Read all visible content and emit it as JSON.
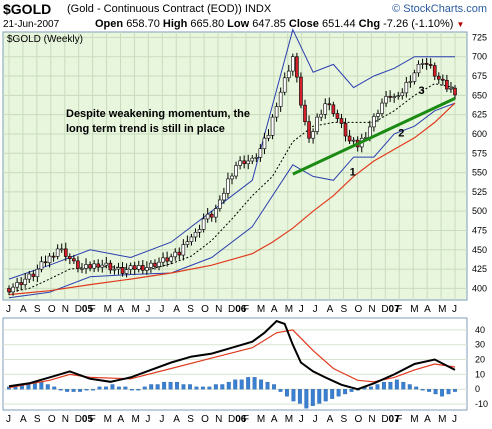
{
  "header": {
    "symbol": "$GOLD",
    "description": "(Gold - Continuous Contract (EOD))",
    "exchange": "INDX",
    "date": "21-Jun-2007",
    "open_label": "Open",
    "open_value": "658.70",
    "high_label": "High",
    "high_value": "665.80",
    "low_label": "Low",
    "low_value": "647.85",
    "close_label": "Close",
    "close_value": "651.44",
    "chg_label": "Chg",
    "chg_value": "-7.26 (-1.10%)",
    "chg_icon": "down-triangle-icon",
    "brand": "© StockCharts.com"
  },
  "chart_data": [
    {
      "type": "candlestick",
      "legend_label": "$GOLD (Weekly)",
      "annotation": "Despite weakening momentum, the long term trend is still in place",
      "point_labels": [
        "1",
        "2",
        "3"
      ],
      "y_ticks": [
        400,
        425,
        450,
        475,
        500,
        525,
        550,
        575,
        600,
        625,
        650,
        675,
        700,
        725
      ],
      "ylim": [
        385,
        732
      ],
      "x_labels": [
        "J",
        "A",
        "S",
        "O",
        "N",
        "D05",
        "F",
        "M",
        "A",
        "M",
        "J",
        "J",
        "A",
        "S",
        "O",
        "N",
        "D06",
        "F",
        "M",
        "A",
        "M",
        "J",
        "J",
        "A",
        "S",
        "O",
        "N",
        "D07",
        "F",
        "M",
        "A",
        "M",
        "J"
      ],
      "x_bold_labels": [
        "05",
        "06",
        "07"
      ],
      "close_series": [
        [
          0,
          400
        ],
        [
          2,
          405
        ],
        [
          4,
          412
        ],
        [
          6,
          418
        ],
        [
          8,
          430
        ],
        [
          10,
          440
        ],
        [
          12,
          452
        ],
        [
          14,
          445
        ],
        [
          16,
          432
        ],
        [
          18,
          425
        ],
        [
          20,
          428
        ],
        [
          22,
          432
        ],
        [
          24,
          430
        ],
        [
          26,
          425
        ],
        [
          28,
          422
        ],
        [
          30,
          425
        ],
        [
          32,
          428
        ],
        [
          34,
          428
        ],
        [
          36,
          432
        ],
        [
          38,
          436
        ],
        [
          40,
          440
        ],
        [
          42,
          445
        ],
        [
          44,
          465
        ],
        [
          46,
          470
        ],
        [
          48,
          490
        ],
        [
          50,
          495
        ],
        [
          52,
          510
        ],
        [
          54,
          540
        ],
        [
          56,
          560
        ],
        [
          58,
          565
        ],
        [
          60,
          565
        ],
        [
          62,
          580
        ],
        [
          64,
          600
        ],
        [
          66,
          640
        ],
        [
          68,
          670
        ],
        [
          70,
          700
        ],
        [
          72,
          640
        ],
        [
          74,
          590
        ],
        [
          76,
          620
        ],
        [
          78,
          640
        ],
        [
          80,
          630
        ],
        [
          82,
          610
        ],
        [
          84,
          590
        ],
        [
          86,
          585
        ],
        [
          88,
          600
        ],
        [
          90,
          620
        ],
        [
          92,
          640
        ],
        [
          94,
          650
        ],
        [
          96,
          645
        ],
        [
          98,
          665
        ],
        [
          100,
          680
        ],
        [
          102,
          695
        ],
        [
          104,
          685
        ],
        [
          106,
          670
        ],
        [
          108,
          660
        ],
        [
          110,
          655
        ]
      ],
      "sma_fast_series": [
        [
          0,
          395
        ],
        [
          5,
          400
        ],
        [
          10,
          412
        ],
        [
          15,
          425
        ],
        [
          20,
          428
        ],
        [
          25,
          428
        ],
        [
          30,
          426
        ],
        [
          35,
          425
        ],
        [
          40,
          432
        ],
        [
          45,
          442
        ],
        [
          50,
          462
        ],
        [
          55,
          490
        ],
        [
          60,
          520
        ],
        [
          65,
          545
        ],
        [
          70,
          590
        ],
        [
          75,
          610
        ],
        [
          80,
          615
        ],
        [
          85,
          615
        ],
        [
          90,
          615
        ],
        [
          95,
          630
        ],
        [
          100,
          650
        ],
        [
          105,
          665
        ],
        [
          110,
          660
        ]
      ],
      "sma_slow_series": [
        [
          0,
          392
        ],
        [
          10,
          397
        ],
        [
          20,
          405
        ],
        [
          30,
          412
        ],
        [
          40,
          420
        ],
        [
          50,
          430
        ],
        [
          60,
          445
        ],
        [
          65,
          460
        ],
        [
          70,
          478
        ],
        [
          75,
          500
        ],
        [
          80,
          520
        ],
        [
          85,
          545
        ],
        [
          90,
          565
        ],
        [
          95,
          580
        ],
        [
          100,
          595
        ],
        [
          105,
          615
        ],
        [
          110,
          640
        ]
      ],
      "trendline": [
        [
          70,
          548
        ],
        [
          110,
          646
        ]
      ],
      "bands": {
        "upper": [
          [
            0,
            412
          ],
          [
            10,
            430
          ],
          [
            20,
            450
          ],
          [
            30,
            440
          ],
          [
            40,
            460
          ],
          [
            50,
            500
          ],
          [
            60,
            540
          ],
          [
            70,
            735
          ],
          [
            75,
            680
          ],
          [
            80,
            690
          ],
          [
            85,
            660
          ],
          [
            90,
            675
          ],
          [
            95,
            685
          ],
          [
            100,
            700
          ],
          [
            105,
            700
          ],
          [
            110,
            700
          ]
        ],
        "lower": [
          [
            0,
            388
          ],
          [
            10,
            395
          ],
          [
            20,
            415
          ],
          [
            30,
            418
          ],
          [
            40,
            420
          ],
          [
            50,
            440
          ],
          [
            60,
            480
          ],
          [
            70,
            560
          ],
          [
            75,
            545
          ],
          [
            80,
            540
          ],
          [
            85,
            570
          ],
          [
            90,
            570
          ],
          [
            95,
            600
          ],
          [
            100,
            610
          ],
          [
            105,
            630
          ],
          [
            110,
            640
          ]
        ]
      }
    },
    {
      "type": "macd",
      "y_ticks": [
        40,
        30,
        20,
        10,
        0,
        -10
      ],
      "ylim": [
        -14,
        48
      ],
      "macd_series": [
        [
          0,
          2
        ],
        [
          5,
          4
        ],
        [
          10,
          8
        ],
        [
          15,
          12
        ],
        [
          20,
          7
        ],
        [
          25,
          5
        ],
        [
          30,
          8
        ],
        [
          35,
          13
        ],
        [
          40,
          18
        ],
        [
          45,
          22
        ],
        [
          50,
          24
        ],
        [
          55,
          28
        ],
        [
          60,
          32
        ],
        [
          63,
          38
        ],
        [
          66,
          46
        ],
        [
          68,
          44
        ],
        [
          70,
          30
        ],
        [
          72,
          18
        ],
        [
          75,
          12
        ],
        [
          78,
          8
        ],
        [
          82,
          3
        ],
        [
          86,
          0
        ],
        [
          90,
          4
        ],
        [
          95,
          10
        ],
        [
          100,
          17
        ],
        [
          105,
          20
        ],
        [
          110,
          13
        ]
      ],
      "signal_series": [
        [
          0,
          1
        ],
        [
          10,
          6
        ],
        [
          15,
          10
        ],
        [
          20,
          8
        ],
        [
          30,
          7
        ],
        [
          40,
          14
        ],
        [
          50,
          21
        ],
        [
          60,
          28
        ],
        [
          66,
          38
        ],
        [
          70,
          40
        ],
        [
          75,
          26
        ],
        [
          80,
          14
        ],
        [
          86,
          6
        ],
        [
          90,
          5
        ],
        [
          95,
          8
        ],
        [
          100,
          13
        ],
        [
          105,
          17
        ],
        [
          110,
          15
        ]
      ],
      "histogram": [
        1,
        1,
        2,
        2,
        3,
        3,
        2,
        1,
        0,
        -1,
        -1,
        -1,
        0,
        0,
        1,
        1,
        2,
        1,
        1,
        0,
        0,
        1,
        2,
        2,
        3,
        3,
        3,
        2,
        2,
        1,
        1,
        1,
        2,
        2,
        3,
        4,
        4,
        5,
        5,
        4,
        3,
        2,
        -1,
        -3,
        -5,
        -6,
        -8,
        -7,
        -6,
        -5,
        -4,
        -3,
        -2,
        -1,
        0,
        1,
        1,
        2,
        3,
        3,
        4,
        3,
        2,
        1,
        0,
        -1,
        -2,
        -3,
        -2,
        -1
      ]
    }
  ]
}
